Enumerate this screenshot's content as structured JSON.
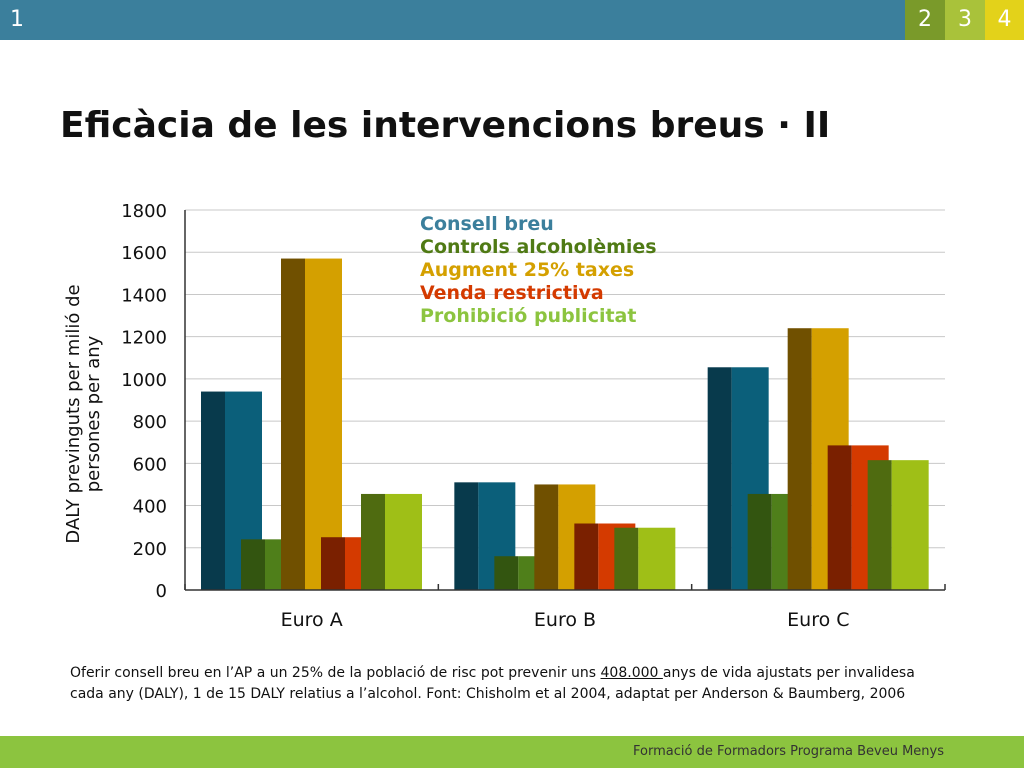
{
  "header": {
    "nums": [
      "1",
      "2",
      "3",
      "4"
    ]
  },
  "title": "Eficàcia de les intervencions breus · II",
  "chart_data": {
    "type": "bar",
    "categories": [
      "Euro A",
      "Euro B",
      "Euro C"
    ],
    "series": [
      {
        "name": "Consell breu",
        "values": [
          940,
          510,
          1055
        ],
        "color": "#0b5f7a",
        "shade": "#083a4c",
        "label_color": "#3b7f9c"
      },
      {
        "name": "Controls alcoholèmies",
        "values": [
          240,
          160,
          455
        ],
        "color": "#4f7f1a",
        "shade": "#335510",
        "label_color": "#4f7a14"
      },
      {
        "name": "Augment 25% taxes",
        "values": [
          1570,
          500,
          1240
        ],
        "color": "#d4a000",
        "shade": "#705000",
        "label_color": "#d4a000"
      },
      {
        "name": "Venda restrictiva",
        "values": [
          250,
          315,
          685
        ],
        "color": "#d43a00",
        "shade": "#7a2000",
        "label_color": "#d43a00"
      },
      {
        "name": "Prohibició publicitat",
        "values": [
          455,
          295,
          615
        ],
        "color": "#9fbf17",
        "shade": "#4f6b10",
        "label_color": "#8cc43f"
      }
    ],
    "ylabel": "DALY previnguts per milió de persones per any",
    "yticks": [
      "0",
      "200",
      "400",
      "600",
      "800",
      "1000",
      "1200",
      "1400",
      "1600",
      "1800"
    ],
    "ylim": [
      0,
      1800
    ],
    "grid": true,
    "legend": "top"
  },
  "caption": {
    "before": "Oferir consell breu en l’AP a un 25% de la població de risc pot prevenir uns ",
    "highlight": "408.000 ",
    "after": "anys de vida ajustats per invalidesa cada any (DALY), 1 de 15 DALY relatius a l’alcohol. Font: Chisholm et al 2004, adaptat per Anderson & Baumberg, 2006"
  },
  "footer": "Formació de Formadors Programa Beveu Menys"
}
